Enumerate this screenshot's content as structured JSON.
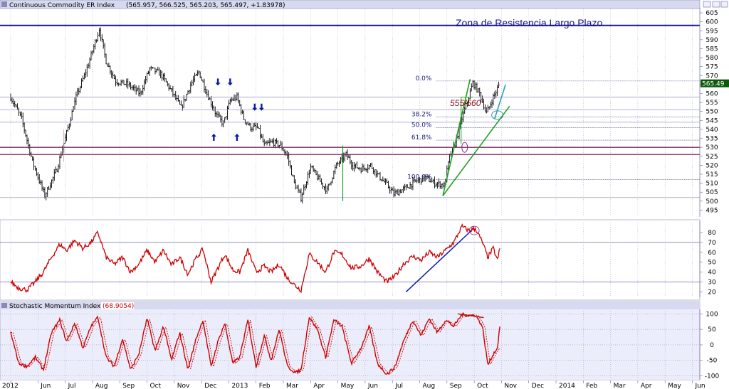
{
  "header": {
    "title": "Continuous Commodity ER Index",
    "ohlc": "(565.957, 566.525, 565.203, 565.497, +1.83978)",
    "close_tag": "565.49"
  },
  "annotations": {
    "resistance_zone": "Zona de Resistencia Largo Plazo",
    "range_label": "555/560"
  },
  "colors": {
    "grid": "#9a9ac8",
    "price_bars": "#000000",
    "indicator_line": "#cc0000",
    "trend_green": "#22a022",
    "trend_blue": "#0a1ab4",
    "resistance": "#1a1a8a",
    "support_purple": "#7a2a6a",
    "panel_bg": "#ecedfa",
    "title_bar": "#d7d9f0"
  },
  "time_axis": {
    "labels": [
      "2012",
      "Jun",
      "Jul",
      "Aug",
      "Sep",
      "Oct",
      "Nov",
      "Dec",
      "2013",
      "Feb",
      "Mar",
      "Apr",
      "May",
      "Jun",
      "Jul",
      "Aug",
      "Sep",
      "Oct",
      "Nov",
      "Dec",
      "2014",
      "Feb",
      "Mar",
      "Apr",
      "May",
      "Jun"
    ]
  },
  "chart_data": [
    {
      "type": "bar",
      "title": "Continuous Commodity ER Index",
      "y_ticks": [
        "605",
        "600",
        "595",
        "590",
        "585",
        "580",
        "575",
        "570",
        "565",
        "560",
        "555",
        "550",
        "545",
        "540",
        "535",
        "530",
        "525",
        "520",
        "515",
        "510",
        "505",
        "500",
        "495"
      ],
      "ylim": [
        492,
        607
      ],
      "ohlc_last": {
        "open": 565.957,
        "high": 566.525,
        "low": 565.203,
        "close": 565.497,
        "change": 1.83978
      },
      "anchors": [
        {
          "m": 0,
          "v": 558
        },
        {
          "m": 0.4,
          "v": 546
        },
        {
          "m": 0.8,
          "v": 522
        },
        {
          "m": 1.25,
          "v": 503
        },
        {
          "m": 1.7,
          "v": 518
        },
        {
          "m": 2.05,
          "v": 538
        },
        {
          "m": 2.4,
          "v": 558
        },
        {
          "m": 2.8,
          "v": 574
        },
        {
          "m": 3.25,
          "v": 596
        },
        {
          "m": 3.5,
          "v": 578
        },
        {
          "m": 3.85,
          "v": 567
        },
        {
          "m": 4.3,
          "v": 565
        },
        {
          "m": 4.75,
          "v": 560
        },
        {
          "m": 5.1,
          "v": 574
        },
        {
          "m": 5.5,
          "v": 571
        },
        {
          "m": 5.95,
          "v": 560
        },
        {
          "m": 6.25,
          "v": 552
        },
        {
          "m": 6.6,
          "v": 565
        },
        {
          "m": 6.9,
          "v": 572
        },
        {
          "m": 7.2,
          "v": 560
        },
        {
          "m": 7.55,
          "v": 548
        },
        {
          "m": 7.8,
          "v": 543
        },
        {
          "m": 8.05,
          "v": 556
        },
        {
          "m": 8.3,
          "v": 558
        },
        {
          "m": 8.55,
          "v": 546
        },
        {
          "m": 8.8,
          "v": 541
        },
        {
          "m": 9.05,
          "v": 541
        },
        {
          "m": 9.3,
          "v": 531
        },
        {
          "m": 9.6,
          "v": 533
        },
        {
          "m": 9.9,
          "v": 531
        },
        {
          "m": 10.15,
          "v": 525
        },
        {
          "m": 10.4,
          "v": 510
        },
        {
          "m": 10.65,
          "v": 502
        },
        {
          "m": 11,
          "v": 519
        },
        {
          "m": 11.35,
          "v": 511
        },
        {
          "m": 11.6,
          "v": 506
        },
        {
          "m": 11.95,
          "v": 520
        },
        {
          "m": 12.3,
          "v": 526
        },
        {
          "m": 12.55,
          "v": 520
        },
        {
          "m": 12.85,
          "v": 518
        },
        {
          "m": 13.2,
          "v": 520
        },
        {
          "m": 13.5,
          "v": 514
        },
        {
          "m": 13.8,
          "v": 509
        },
        {
          "m": 14.05,
          "v": 504
        },
        {
          "m": 14.45,
          "v": 507
        },
        {
          "m": 14.85,
          "v": 511
        },
        {
          "m": 15.2,
          "v": 513
        },
        {
          "m": 15.55,
          "v": 510
        },
        {
          "m": 15.9,
          "v": 509
        },
        {
          "m": 16.1,
          "v": 525
        },
        {
          "m": 16.3,
          "v": 532
        },
        {
          "m": 16.55,
          "v": 546
        },
        {
          "m": 16.8,
          "v": 558
        },
        {
          "m": 16.95,
          "v": 566
        },
        {
          "m": 17.2,
          "v": 560
        },
        {
          "m": 17.45,
          "v": 549
        },
        {
          "m": 17.7,
          "v": 558
        },
        {
          "m": 17.93,
          "v": 565
        }
      ],
      "resistance_level": 598,
      "horizontal_levels": [
        558,
        551,
        544,
        530,
        526,
        502
      ],
      "fib_levels": [
        {
          "label": "0.0%",
          "value": 567
        },
        {
          "label": "38.2%",
          "value": 547
        },
        {
          "label": "50.0%",
          "value": 541
        },
        {
          "label": "61.8%",
          "value": 534
        },
        {
          "label": "100.0%",
          "value": 512
        }
      ],
      "arrows_down": [
        {
          "m": 7.6,
          "v": 566
        },
        {
          "m": 8.05,
          "v": 566
        },
        {
          "m": 8.95,
          "v": 552
        },
        {
          "m": 9.2,
          "v": 552
        }
      ],
      "arrows_up": [
        {
          "m": 7.45,
          "v": 536
        },
        {
          "m": 8.3,
          "v": 536
        }
      ],
      "trend_lines": [
        {
          "from": {
            "m": 15.85,
            "v": 503
          },
          "to": {
            "m": 16.85,
            "v": 568
          }
        },
        {
          "from": {
            "m": 15.85,
            "v": 503
          },
          "to": {
            "m": 18.3,
            "v": 553
          }
        },
        {
          "from": {
            "m": 17.75,
            "v": 546
          },
          "to": {
            "m": 18.15,
            "v": 565
          }
        }
      ]
    },
    {
      "type": "line",
      "title": "",
      "y_ticks": [
        "80",
        "70",
        "60",
        "50",
        "40",
        "30",
        "20"
      ],
      "ylim": [
        16,
        90
      ],
      "levels": [
        70,
        30
      ],
      "anchors": [
        {
          "m": 0,
          "v": 30
        },
        {
          "m": 0.3,
          "v": 24
        },
        {
          "m": 0.6,
          "v": 22
        },
        {
          "m": 0.9,
          "v": 30
        },
        {
          "m": 1.2,
          "v": 40
        },
        {
          "m": 1.5,
          "v": 55
        },
        {
          "m": 1.8,
          "v": 68
        },
        {
          "m": 2.05,
          "v": 62
        },
        {
          "m": 2.35,
          "v": 72
        },
        {
          "m": 2.65,
          "v": 64
        },
        {
          "m": 2.95,
          "v": 70
        },
        {
          "m": 3.2,
          "v": 80
        },
        {
          "m": 3.5,
          "v": 55
        },
        {
          "m": 3.8,
          "v": 48
        },
        {
          "m": 4.1,
          "v": 55
        },
        {
          "m": 4.4,
          "v": 40
        },
        {
          "m": 4.7,
          "v": 48
        },
        {
          "m": 5.0,
          "v": 62
        },
        {
          "m": 5.3,
          "v": 50
        },
        {
          "m": 5.6,
          "v": 62
        },
        {
          "m": 5.9,
          "v": 47
        },
        {
          "m": 6.2,
          "v": 55
        },
        {
          "m": 6.5,
          "v": 38
        },
        {
          "m": 6.8,
          "v": 54
        },
        {
          "m": 7.05,
          "v": 63
        },
        {
          "m": 7.35,
          "v": 30
        },
        {
          "m": 7.6,
          "v": 44
        },
        {
          "m": 7.85,
          "v": 58
        },
        {
          "m": 8.15,
          "v": 42
        },
        {
          "m": 8.4,
          "v": 40
        },
        {
          "m": 8.7,
          "v": 62
        },
        {
          "m": 9.0,
          "v": 40
        },
        {
          "m": 9.3,
          "v": 46
        },
        {
          "m": 9.55,
          "v": 40
        },
        {
          "m": 9.85,
          "v": 48
        },
        {
          "m": 10.15,
          "v": 34
        },
        {
          "m": 10.45,
          "v": 26
        },
        {
          "m": 10.65,
          "v": 22
        },
        {
          "m": 10.95,
          "v": 58
        },
        {
          "m": 11.25,
          "v": 50
        },
        {
          "m": 11.55,
          "v": 40
        },
        {
          "m": 11.85,
          "v": 60
        },
        {
          "m": 12.15,
          "v": 58
        },
        {
          "m": 12.5,
          "v": 44
        },
        {
          "m": 12.85,
          "v": 46
        },
        {
          "m": 13.15,
          "v": 54
        },
        {
          "m": 13.45,
          "v": 40
        },
        {
          "m": 13.8,
          "v": 30
        },
        {
          "m": 14.1,
          "v": 36
        },
        {
          "m": 14.4,
          "v": 48
        },
        {
          "m": 14.75,
          "v": 56
        },
        {
          "m": 15.05,
          "v": 52
        },
        {
          "m": 15.35,
          "v": 60
        },
        {
          "m": 15.65,
          "v": 55
        },
        {
          "m": 15.95,
          "v": 62
        },
        {
          "m": 16.25,
          "v": 70
        },
        {
          "m": 16.55,
          "v": 86
        },
        {
          "m": 16.8,
          "v": 82
        },
        {
          "m": 17.05,
          "v": 84
        },
        {
          "m": 17.3,
          "v": 70
        },
        {
          "m": 17.5,
          "v": 55
        },
        {
          "m": 17.7,
          "v": 64
        },
        {
          "m": 17.85,
          "v": 52
        },
        {
          "m": 17.95,
          "v": 65
        }
      ],
      "trend_lines": [
        {
          "from": {
            "m": 14.5,
            "v": 20
          },
          "to": {
            "m": 16.9,
            "v": 82
          }
        }
      ]
    },
    {
      "type": "line",
      "title": "Stochastic Momentum Index",
      "last_value": "(68.9054)",
      "y_ticks": [
        "100",
        "50",
        "0",
        "-50",
        "-100"
      ],
      "ylim": [
        -108,
        110
      ],
      "anchors": [
        {
          "m": 0,
          "v": 40
        },
        {
          "m": 0.3,
          "v": -60
        },
        {
          "m": 0.6,
          "v": -70
        },
        {
          "m": 0.9,
          "v": -40
        },
        {
          "m": 1.2,
          "v": -80
        },
        {
          "m": 1.5,
          "v": 40
        },
        {
          "m": 1.8,
          "v": 80
        },
        {
          "m": 2.05,
          "v": 10
        },
        {
          "m": 2.35,
          "v": 70
        },
        {
          "m": 2.65,
          "v": -10
        },
        {
          "m": 2.95,
          "v": 60
        },
        {
          "m": 3.2,
          "v": 90
        },
        {
          "m": 3.5,
          "v": -40
        },
        {
          "m": 3.8,
          "v": -70
        },
        {
          "m": 4.1,
          "v": 20
        },
        {
          "m": 4.4,
          "v": -80
        },
        {
          "m": 4.7,
          "v": -30
        },
        {
          "m": 5.0,
          "v": 85
        },
        {
          "m": 5.3,
          "v": -20
        },
        {
          "m": 5.6,
          "v": 60
        },
        {
          "m": 5.9,
          "v": -50
        },
        {
          "m": 6.2,
          "v": 40
        },
        {
          "m": 6.5,
          "v": -80
        },
        {
          "m": 6.8,
          "v": 20
        },
        {
          "m": 7.05,
          "v": 80
        },
        {
          "m": 7.35,
          "v": -70
        },
        {
          "m": 7.6,
          "v": 10
        },
        {
          "m": 7.85,
          "v": 70
        },
        {
          "m": 8.15,
          "v": -60
        },
        {
          "m": 8.4,
          "v": -40
        },
        {
          "m": 8.7,
          "v": 80
        },
        {
          "m": 9.0,
          "v": -70
        },
        {
          "m": 9.3,
          "v": 30
        },
        {
          "m": 9.55,
          "v": -50
        },
        {
          "m": 9.85,
          "v": 50
        },
        {
          "m": 10.15,
          "v": -70
        },
        {
          "m": 10.45,
          "v": -90
        },
        {
          "m": 10.65,
          "v": -80
        },
        {
          "m": 10.95,
          "v": 90
        },
        {
          "m": 11.25,
          "v": 50
        },
        {
          "m": 11.55,
          "v": -40
        },
        {
          "m": 11.85,
          "v": 80
        },
        {
          "m": 12.15,
          "v": 60
        },
        {
          "m": 12.5,
          "v": -60
        },
        {
          "m": 12.85,
          "v": -10
        },
        {
          "m": 13.15,
          "v": 60
        },
        {
          "m": 13.45,
          "v": -60
        },
        {
          "m": 13.8,
          "v": -95
        },
        {
          "m": 14.1,
          "v": -70
        },
        {
          "m": 14.4,
          "v": 10
        },
        {
          "m": 14.75,
          "v": 80
        },
        {
          "m": 15.05,
          "v": 30
        },
        {
          "m": 15.35,
          "v": 85
        },
        {
          "m": 15.65,
          "v": 40
        },
        {
          "m": 15.95,
          "v": 80
        },
        {
          "m": 16.25,
          "v": 60
        },
        {
          "m": 16.55,
          "v": 98
        },
        {
          "m": 16.8,
          "v": 95
        },
        {
          "m": 17.05,
          "v": 96
        },
        {
          "m": 17.3,
          "v": 60
        },
        {
          "m": 17.5,
          "v": -65
        },
        {
          "m": 17.7,
          "v": -30
        },
        {
          "m": 17.85,
          "v": -10
        },
        {
          "m": 17.95,
          "v": 69
        }
      ],
      "trend_lines": [
        {
          "from": {
            "m": 16.4,
            "v": 100
          },
          "to": {
            "m": 17.35,
            "v": 88
          }
        }
      ]
    }
  ]
}
